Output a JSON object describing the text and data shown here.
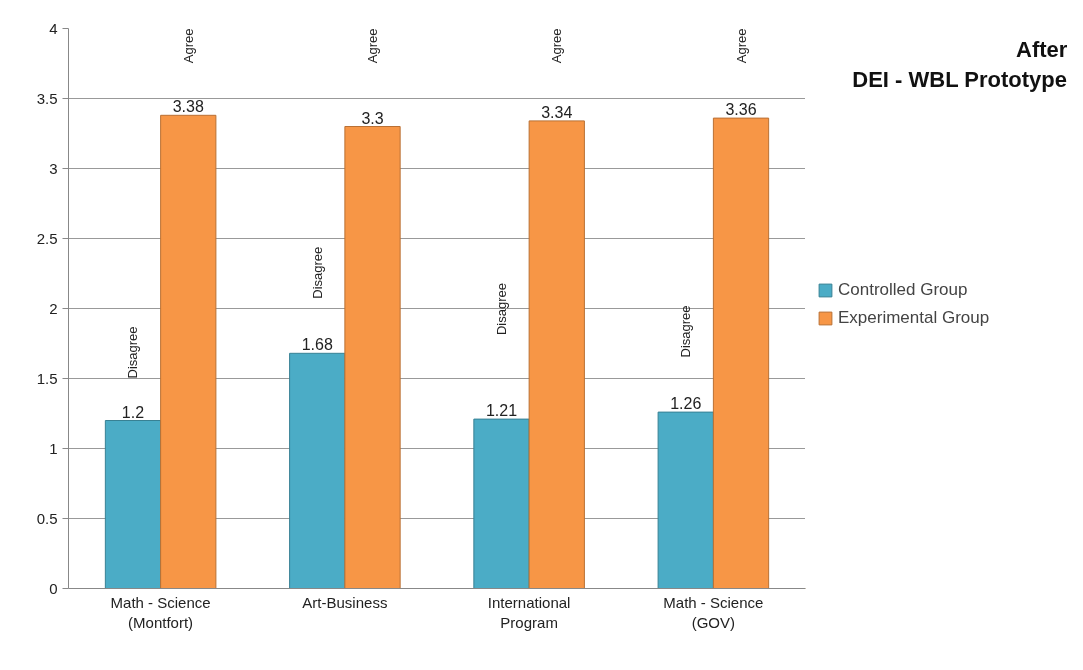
{
  "chart_data": {
    "type": "bar",
    "title": "After\nDEI - WBL Prototype",
    "categories": [
      "Math - Science\n(Montfort)",
      "Art-Business",
      "International\nProgram",
      "Math - Science\n(GOV)"
    ],
    "series": [
      {
        "name": "Controlled Group",
        "color": "#4bacc6",
        "values": [
          1.2,
          1.68,
          1.21,
          1.26
        ]
      },
      {
        "name": "Experimental Group",
        "color": "#f79646",
        "values": [
          3.38,
          3.3,
          3.34,
          3.36
        ]
      }
    ],
    "ylim": [
      0,
      4
    ],
    "yticks": [
      0,
      0.5,
      1,
      1.5,
      2,
      2.5,
      3,
      3.5,
      4
    ],
    "grid": "y",
    "legend": "right",
    "data_labels": true,
    "annotations": [
      {
        "text": "Disagree",
        "x": "Math - Science\n(Montfort)",
        "y": 1.5
      },
      {
        "text": "Disagree",
        "x": "Art-Business",
        "y": 2.07
      },
      {
        "text": "Disagree",
        "x": "International\nProgram",
        "y": 1.81
      },
      {
        "text": "Disagree",
        "x": "Math - Science\n(GOV)",
        "y": 1.65
      },
      "Agree",
      "Agree",
      "Agree",
      "Agree"
    ]
  }
}
